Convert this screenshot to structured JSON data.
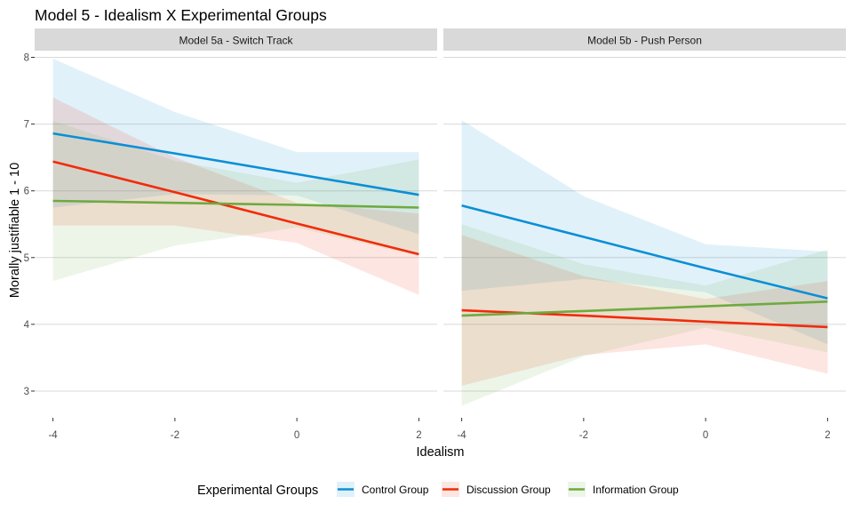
{
  "chart_data": {
    "type": "line",
    "title": "Model 5 - Idealism X Experimental Groups",
    "xlabel": "Idealism",
    "ylabel": "Morally justifiable 1 - 10",
    "xlim": [
      -4.3,
      2.3
    ],
    "ylim": [
      2.6,
      8.1
    ],
    "x_ticks": [
      -4,
      -2,
      0,
      2
    ],
    "x_tick_labels": [
      "-4",
      "-2",
      "0",
      "2"
    ],
    "y_ticks": [
      3,
      4,
      5,
      6,
      7,
      8
    ],
    "y_tick_labels": [
      "3",
      "4",
      "5",
      "6",
      "7",
      "8"
    ],
    "grid": true,
    "legend_position": "bottom",
    "legend_title": "Experimental Groups",
    "colors": {
      "control": "#0a8fd6",
      "discussion": "#f22b0a",
      "information": "#6faa40",
      "strip_background": "#d9d9d9",
      "grid": "#d9d9d9"
    },
    "groups": [
      {
        "key": "control",
        "name": "Control Group"
      },
      {
        "key": "discussion",
        "name": "Discussion Group"
      },
      {
        "key": "information",
        "name": "Information Group"
      }
    ],
    "panels": [
      {
        "strip": "Model 5a - Switch Track",
        "series": [
          {
            "key": "control",
            "x": [
              -4,
              -2,
              0,
              2
            ],
            "y": [
              6.86,
              6.56,
              6.25,
              5.94
            ],
            "lower": [
              5.75,
              5.95,
              5.93,
              5.35
            ],
            "upper": [
              7.98,
              7.18,
              6.58,
              6.58
            ]
          },
          {
            "key": "discussion",
            "x": [
              -4,
              -2,
              0,
              2
            ],
            "y": [
              6.44,
              5.98,
              5.51,
              5.05
            ],
            "lower": [
              5.48,
              5.48,
              5.22,
              4.44
            ],
            "upper": [
              7.4,
              6.5,
              5.82,
              5.66
            ]
          },
          {
            "key": "information",
            "x": [
              -4,
              -2,
              0,
              2
            ],
            "y": [
              5.85,
              5.82,
              5.79,
              5.75
            ],
            "lower": [
              4.65,
              5.18,
              5.45,
              5.02
            ],
            "upper": [
              7.05,
              6.45,
              6.12,
              6.47
            ]
          }
        ]
      },
      {
        "strip": "Model 5b - Push Person",
        "series": [
          {
            "key": "control",
            "x": [
              -4,
              -2,
              0,
              2
            ],
            "y": [
              5.78,
              5.31,
              4.84,
              4.39
            ],
            "lower": [
              4.5,
              4.68,
              4.48,
              3.7
            ],
            "upper": [
              7.06,
              5.92,
              5.2,
              5.09
            ]
          },
          {
            "key": "discussion",
            "x": [
              -4,
              -2,
              0,
              2
            ],
            "y": [
              4.21,
              4.13,
              4.04,
              3.96
            ],
            "lower": [
              3.08,
              3.54,
              3.7,
              3.26
            ],
            "upper": [
              5.34,
              4.72,
              4.38,
              4.65
            ]
          },
          {
            "key": "information",
            "x": [
              -4,
              -2,
              0,
              2
            ],
            "y": [
              4.13,
              4.2,
              4.27,
              4.34
            ],
            "lower": [
              2.78,
              3.52,
              3.95,
              3.58
            ],
            "upper": [
              5.5,
              4.9,
              4.58,
              5.12
            ]
          }
        ]
      }
    ]
  }
}
